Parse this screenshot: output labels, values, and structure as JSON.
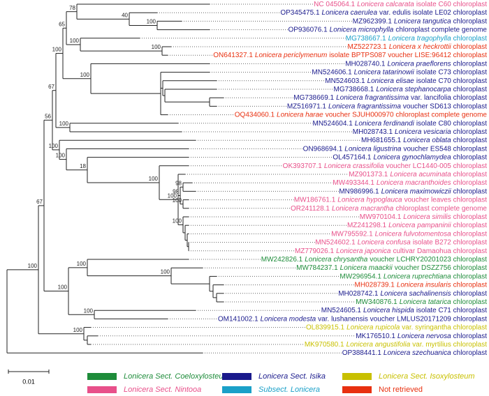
{
  "leaves": [
    {
      "accession": "NC 045064.1",
      "species": "Lonicera calcarata",
      "detail": "isolate C60 chloroplast",
      "color": "#e8508a"
    },
    {
      "accession": "OP345475.1",
      "species": "Lonicera caerulea",
      "detail": "var. edulis isolate LE02 chloroplast",
      "color": "#1a1a8c"
    },
    {
      "accession": "MZ962399.1",
      "species": "Lonicera tangutica",
      "detail": "chloroplast",
      "color": "#1a1a8c"
    },
    {
      "accession": "OP936076.1",
      "species": "Lonicera microphylla",
      "detail": "chloroplast complete genome",
      "color": "#1a1a8c"
    },
    {
      "accession": "MG738667.1",
      "species": "Lonicera tragophylla",
      "detail": "chloroplast",
      "color": "#1aa0c8"
    },
    {
      "accession": "MZ522723.1",
      "species": "Lonicera x heckrottii",
      "detail": "chloroplast",
      "color": "#e83010"
    },
    {
      "accession": "ON641327.1",
      "species": "Lonicera periclymenum",
      "detail": "isolate BPTPS087 voucher LISE:96412 chloroplast",
      "color": "#e83010"
    },
    {
      "accession": "MH028740.1",
      "species": "Lonicera praeflorens",
      "detail": "chloroplast",
      "color": "#1a1a8c"
    },
    {
      "accession": "MN524606.1",
      "species": "Lonicera tatarinowii",
      "detail": "isolate C73 chloroplast",
      "color": "#1a1a8c"
    },
    {
      "accession": "MN524603.1",
      "species": "Lonicera elisae",
      "detail": "isolate C70 chloroplast",
      "color": "#1a1a8c"
    },
    {
      "accession": "MG738668.1",
      "species": "Lonicera stephanocarpa",
      "detail": "chloroplast",
      "color": "#1a1a8c"
    },
    {
      "accession": "MG738669.1",
      "species": "Lonicera fragrantissima",
      "detail": "var. lancifolia chloroplast",
      "color": "#1a1a8c"
    },
    {
      "accession": "MZ516971.1",
      "species": "Lonicera fragrantissima",
      "detail": "voucher SD613 chloroplast",
      "color": "#1a1a8c"
    },
    {
      "accession": "OQ434060.1",
      "species": "Lonicera harae",
      "detail": "voucher SJUH000970 chloroplast complete genome",
      "color": "#e83010"
    },
    {
      "accession": "MN524604.1",
      "species": "Lonicera ferdinandi",
      "detail": "isolate C80 chloroplast",
      "color": "#1a1a8c"
    },
    {
      "accession": "MH028743.1",
      "species": "Lonicera vesicaria",
      "detail": "chloroplast",
      "color": "#1a1a8c"
    },
    {
      "accession": "MH681655.1",
      "species": "Lonicera oblata",
      "detail": "chloroplast",
      "color": "#1a1a8c"
    },
    {
      "accession": "ON968694.1",
      "species": "Lonicera ligustrina",
      "detail": "voucher ES548 chloroplast",
      "color": "#1a1a8c"
    },
    {
      "accession": "OL457164.1",
      "species": "Lonicera gynochlamydea",
      "detail": "chloroplast",
      "color": "#1a1a8c"
    },
    {
      "accession": "OK393707.1",
      "species": "Lonicera crassifolia",
      "detail": "voucher LC1440-005 chloroplast",
      "color": "#e8508a"
    },
    {
      "accession": "MZ901373.1",
      "species": "Lonicera acuminata",
      "detail": "chloroplast",
      "color": "#e8508a"
    },
    {
      "accession": "MW493344.1",
      "species": "Lonicera macranthoides",
      "detail": "chloroplast",
      "color": "#e8508a"
    },
    {
      "accession": "MN986996.1",
      "species": "Lonicera maximowiczii",
      "detail": "chloroplast",
      "color": "#1a1a8c"
    },
    {
      "accession": "MW186761.1",
      "species": "Lonicera hypoglauca",
      "detail": "voucher leaves chloroplast",
      "color": "#e8508a"
    },
    {
      "accession": "OR241128.1",
      "species": "Lonicera macrantha",
      "detail": "chloroplast complete genome",
      "color": "#e8508a"
    },
    {
      "accession": "MW970104.1",
      "species": "Lonicera similis",
      "detail": "chloroplast",
      "color": "#e8508a"
    },
    {
      "accession": "MZ241298.1",
      "species": "Lonicera pampaninii",
      "detail": "chloroplast",
      "color": "#e8508a"
    },
    {
      "accession": "MW795592.1",
      "species": "Lonicera fulvotomentosa",
      "detail": "chloroplast",
      "color": "#e8508a"
    },
    {
      "accession": "MN524602.1",
      "species": "Lonicera confusa",
      "detail": "isolate B272 chloroplast",
      "color": "#e8508a"
    },
    {
      "accession": "MZ779026.1",
      "species": "Lonicera japonica",
      "detail": "cultivar Damaohua chloroplast",
      "color": "#e8508a"
    },
    {
      "accession": "MW242826.1",
      "species": "Lonicera chrysantha",
      "detail": "voucher LCHRY20201023 chloroplast",
      "color": "#1e8c3a"
    },
    {
      "accession": "MW784237.1",
      "species": "Lonicera maackii",
      "detail": "voucher DSZZ756 chloroplast",
      "color": "#1e8c3a"
    },
    {
      "accession": "MW296954.1",
      "species": "Lonicera ruprechtiana",
      "detail": "chloroplast",
      "color": "#1e8c3a"
    },
    {
      "accession": "MH028739.1",
      "species": "Lonicera insularis",
      "detail": "chloroplast",
      "color": "#e83010"
    },
    {
      "accession": "MH028742.1",
      "species": "Lonicera sachalinensis",
      "detail": "chloroplast",
      "color": "#1a1a8c"
    },
    {
      "accession": "MW340876.1",
      "species": "Lonicera tatarica",
      "detail": "chloroplast",
      "color": "#1e8c3a"
    },
    {
      "accession": "MN524605.1",
      "species": "Lonicera hispida",
      "detail": "isolate C71 chloroplast",
      "color": "#1a1a8c"
    },
    {
      "accession": "OM141002.1",
      "species": "Lonicera modesta",
      "detail": "var. lushanensis voucher LMLUS20171209 chloroplast",
      "color": "#1a1a8c"
    },
    {
      "accession": "OL839915.1",
      "species": "Lonicera rupicola",
      "detail": "var. syringantha chloroplast",
      "color": "#c8c000"
    },
    {
      "accession": "MK176510.1",
      "species": "Lonicera nervosa",
      "detail": "chloroplast",
      "color": "#1a1a8c"
    },
    {
      "accession": "MK970580.1",
      "species": "Lonicera angustifolia",
      "detail": "var. myrtilius chloroplast",
      "color": "#c8c000"
    },
    {
      "accession": "OP388441.1",
      "species": "Lonicera szechuanica",
      "detail": "chloroplast",
      "color": "#1a1a8c"
    }
  ],
  "supports": [
    78,
    40,
    100,
    65,
    100,
    100,
    100,
    100,
    67,
    100,
    56,
    100,
    100,
    18,
    100,
    100,
    98,
    98,
    100,
    100,
    67,
    100,
    100,
    100,
    100,
    100,
    100
  ],
  "scale_bar": "0.01",
  "legend": [
    {
      "label": "Lonicera Sect. Coeloxylosteum",
      "color": "#1e8c3a",
      "italic": true
    },
    {
      "label": "Lonicera Sect. Isika",
      "color": "#1a1a8c",
      "italic": true
    },
    {
      "label": "Lonicera Sect. Isoxylosteum",
      "color": "#c8c000",
      "italic": true
    },
    {
      "label": "Lonicera Sect. Nintooa",
      "color": "#e8508a",
      "italic": true
    },
    {
      "label": "Subsect. Lonicera",
      "color": "#1aa0c8",
      "italic": true
    },
    {
      "label": "Not retrieved",
      "color": "#e83010",
      "italic": false
    }
  ]
}
